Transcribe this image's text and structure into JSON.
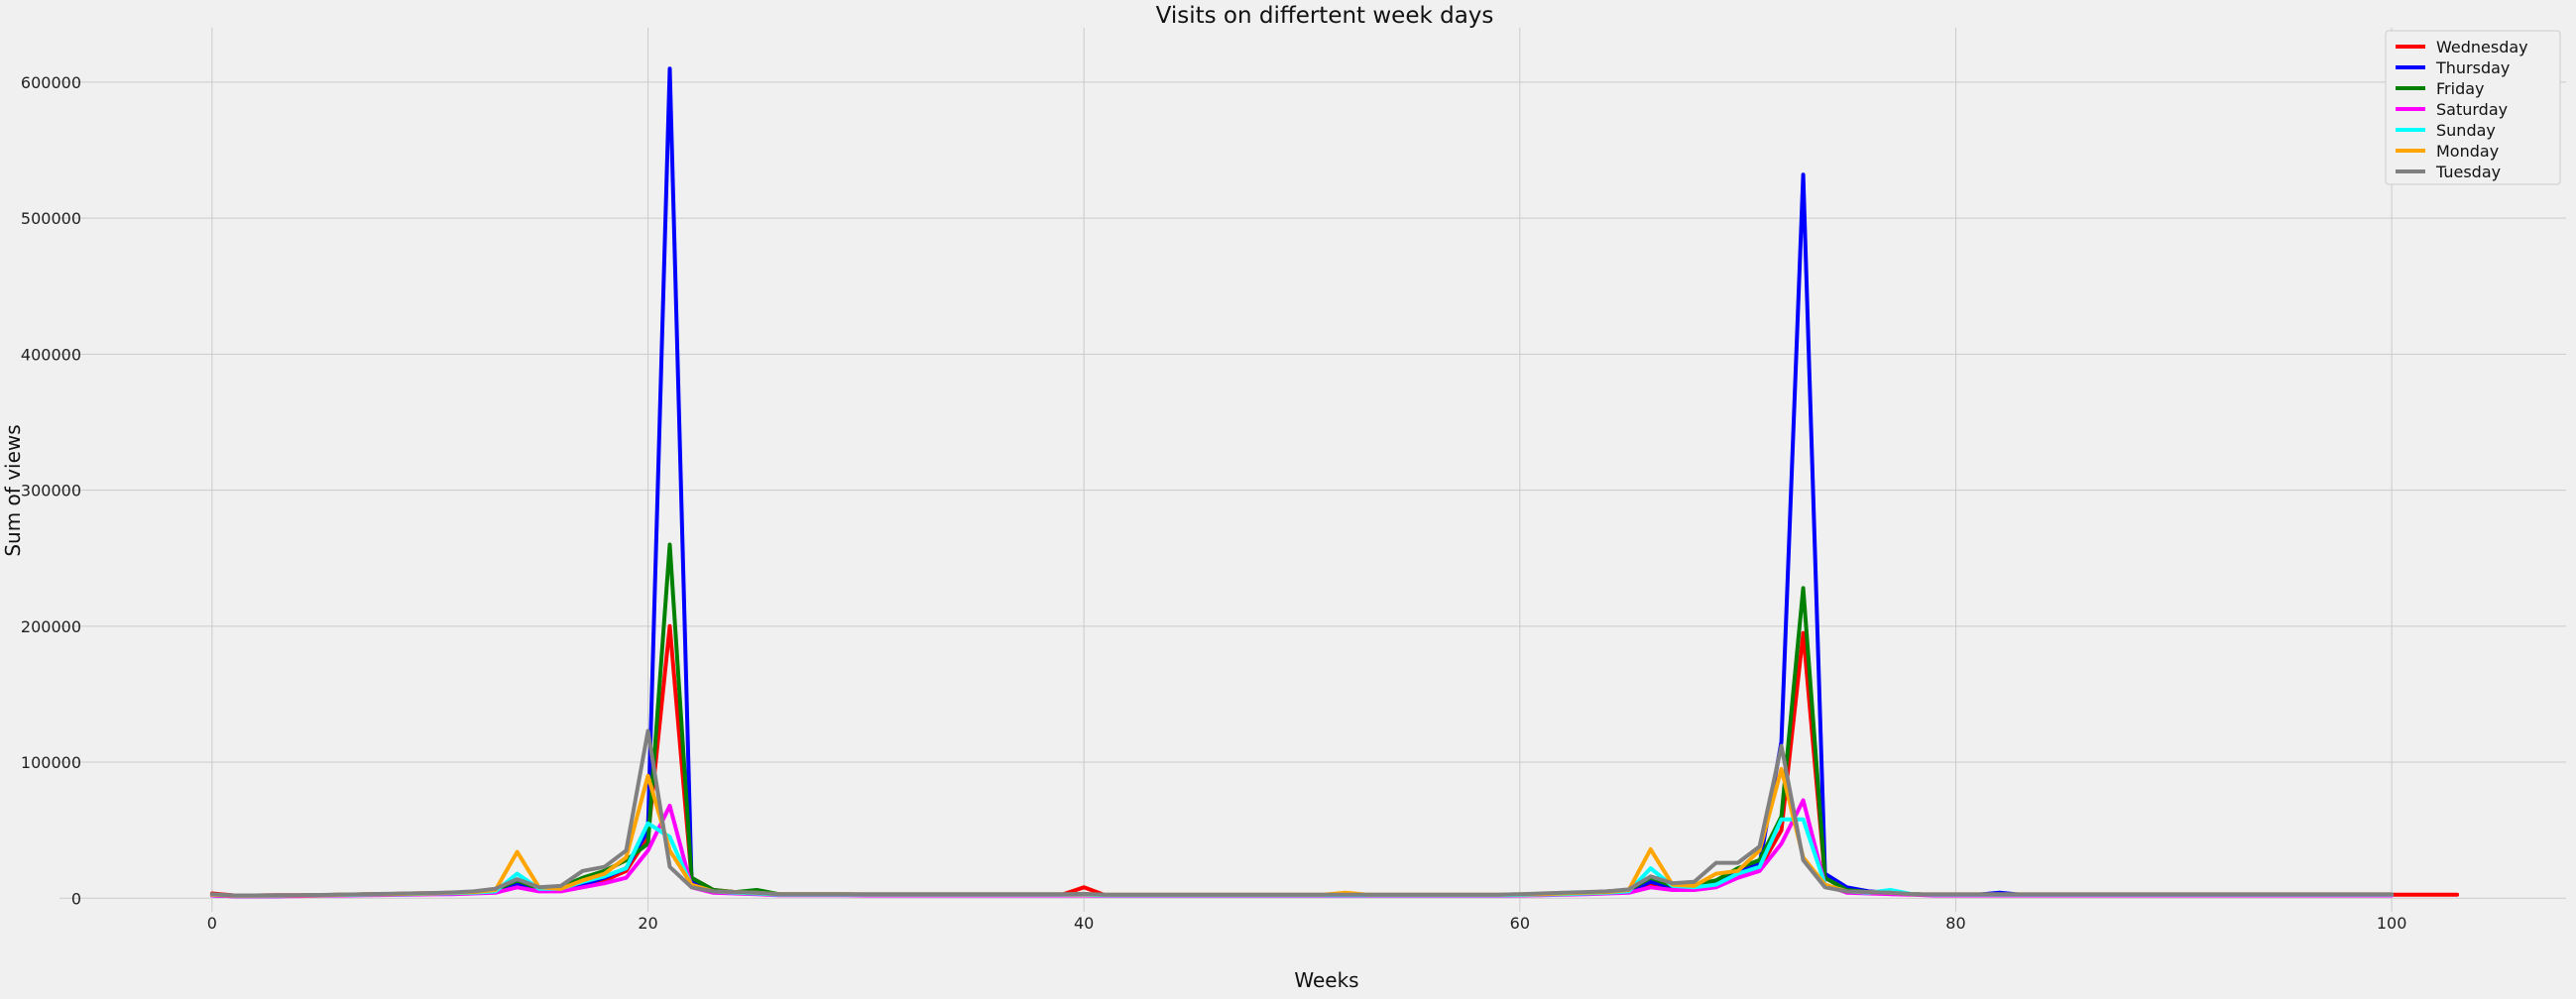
{
  "chart_data": {
    "type": "line",
    "title": "Visits on differtent week days",
    "xlabel": "Weeks",
    "ylabel": "Sum of views",
    "xlim": [
      -7,
      108
    ],
    "ylim": [
      -10000,
      640000
    ],
    "xticks": [
      0,
      20,
      40,
      60,
      80,
      100
    ],
    "xtick_labels": [
      "0",
      "20",
      "40",
      "60",
      "80",
      "100"
    ],
    "yticks": [
      0,
      100000,
      200000,
      300000,
      400000,
      500000,
      600000
    ],
    "ytick_labels": [
      "0",
      "100000",
      "200000",
      "300000",
      "400000",
      "500000",
      "600000"
    ],
    "grid": true,
    "legend_position": "top-right",
    "series": [
      {
        "name": "Wednesday",
        "color": "#ff0000",
        "x_start": 0,
        "values": [
          3500,
          2000,
          2000,
          2200,
          2200,
          2300,
          2600,
          2800,
          3000,
          3500,
          3600,
          4000,
          4500,
          5500,
          10000,
          7000,
          7000,
          10000,
          13000,
          20000,
          45000,
          200000,
          15000,
          6000,
          4500,
          4200,
          3000,
          2800,
          2800,
          2800,
          2700,
          2700,
          2700,
          2700,
          2700,
          2700,
          2700,
          2700,
          2700,
          2700,
          8000,
          2000,
          2000,
          2000,
          2000,
          2000,
          2000,
          2000,
          2000,
          2000,
          2000,
          2000,
          2000,
          2000,
          2000,
          2000,
          2000,
          2000,
          2000,
          2000,
          2500,
          3000,
          3500,
          4000,
          4500,
          5000,
          10000,
          8000,
          8000,
          10000,
          18000,
          22000,
          50000,
          195000,
          15000,
          6000,
          4500,
          4000,
          3000,
          2500,
          2500,
          2500,
          2500,
          2500,
          2500,
          2500,
          2500,
          2500,
          2500,
          2500,
          2500,
          2500,
          2500,
          2500,
          2500,
          2500,
          2500,
          2500,
          2500,
          2500,
          2500,
          2500,
          2500,
          2500
        ]
      },
      {
        "name": "Thursday",
        "color": "#0000ff",
        "x_start": 0,
        "values": [
          2000,
          1500,
          1500,
          1500,
          1800,
          2000,
          2200,
          2500,
          2800,
          3000,
          3200,
          3500,
          4000,
          5000,
          10000,
          6000,
          6000,
          10000,
          15000,
          22000,
          50000,
          610000,
          12000,
          5000,
          4000,
          3500,
          2500,
          2500,
          2500,
          2500,
          2300,
          2300,
          2300,
          2300,
          2300,
          2300,
          2300,
          2300,
          2300,
          2300,
          3000,
          2000,
          2000,
          2000,
          2000,
          2000,
          2000,
          2000,
          2000,
          2000,
          2000,
          2000,
          2000,
          2000,
          2000,
          2000,
          2000,
          2000,
          2000,
          2000,
          2200,
          2500,
          3000,
          3500,
          4000,
          5000,
          12000,
          8000,
          8000,
          12000,
          20000,
          25000,
          115000,
          532000,
          18000,
          8000,
          5000,
          4000,
          3000,
          2500,
          2500,
          2500,
          4000,
          2500,
          2500,
          2500,
          2500,
          2500,
          2500,
          2500,
          2500,
          2500,
          2500,
          2500,
          2500,
          2500,
          2500,
          2500,
          2500,
          2500,
          2500
        ]
      },
      {
        "name": "Friday",
        "color": "#008000",
        "x_start": 0,
        "values": [
          2500,
          1800,
          1800,
          2000,
          2000,
          2200,
          2500,
          2800,
          3000,
          3200,
          3500,
          4000,
          4500,
          6000,
          13000,
          7000,
          8000,
          15000,
          20000,
          28000,
          40000,
          260000,
          15000,
          6000,
          4500,
          6000,
          3000,
          2800,
          2800,
          2800,
          2700,
          2700,
          2700,
          2700,
          2700,
          2700,
          2700,
          2700,
          2700,
          2700,
          3000,
          2200,
          2200,
          2200,
          2200,
          2200,
          2200,
          2200,
          2200,
          2200,
          2200,
          2200,
          2200,
          2200,
          2200,
          2200,
          2200,
          2200,
          2200,
          2200,
          2500,
          3000,
          3500,
          4000,
          5000,
          6000,
          15000,
          9000,
          10000,
          13000,
          22000,
          28000,
          60000,
          228000,
          15000,
          6000,
          4500,
          4000,
          3000,
          2500,
          2500,
          2500,
          2500,
          2500,
          2500,
          2500,
          2500,
          2500,
          2500,
          2500,
          2500,
          2500,
          2500,
          2500,
          2500,
          2500,
          2500,
          2500,
          2500,
          2500,
          2500
        ]
      },
      {
        "name": "Saturday",
        "color": "#ff00ff",
        "x_start": 0,
        "values": [
          2000,
          1500,
          1500,
          1500,
          1600,
          1800,
          2000,
          2200,
          2400,
          2600,
          2800,
          3000,
          3500,
          4000,
          8000,
          5000,
          5000,
          8000,
          11000,
          15000,
          35000,
          68000,
          8000,
          4000,
          3500,
          3000,
          2200,
          2200,
          2200,
          2200,
          2000,
          2000,
          2000,
          2000,
          2000,
          2000,
          2000,
          2000,
          2000,
          2000,
          2000,
          1800,
          1800,
          1800,
          1800,
          1800,
          1800,
          1800,
          1800,
          1800,
          1800,
          1800,
          1800,
          1800,
          1800,
          1800,
          1800,
          1800,
          1800,
          1800,
          2000,
          2200,
          2500,
          3000,
          3500,
          4000,
          8000,
          6000,
          6000,
          8000,
          15000,
          20000,
          40000,
          72000,
          10000,
          4000,
          3500,
          3000,
          2500,
          2000,
          2000,
          2000,
          2000,
          2000,
          2000,
          2000,
          2000,
          2000,
          2000,
          2000,
          2000,
          2000,
          2000,
          2000,
          2000,
          2000,
          2000,
          2000,
          2000,
          2000,
          2000
        ]
      },
      {
        "name": "Sunday",
        "color": "#00ffff",
        "x_start": 0,
        "values": [
          2500,
          1800,
          1800,
          1800,
          2000,
          2200,
          2400,
          2600,
          2800,
          3000,
          3300,
          3600,
          4000,
          5000,
          18000,
          7000,
          7000,
          12000,
          16000,
          22000,
          55000,
          45000,
          9000,
          5000,
          4000,
          3500,
          2600,
          2600,
          2600,
          2600,
          2500,
          2500,
          2500,
          2500,
          2500,
          2500,
          2500,
          2500,
          2500,
          2500,
          2500,
          2200,
          2200,
          2200,
          2200,
          2200,
          2200,
          2200,
          2200,
          2200,
          2200,
          2200,
          2200,
          2200,
          2200,
          2200,
          2200,
          2200,
          2200,
          2200,
          2400,
          2700,
          3000,
          3500,
          4000,
          5000,
          22000,
          9000,
          8000,
          10000,
          18000,
          23000,
          58000,
          58000,
          10000,
          5000,
          4000,
          6000,
          3000,
          2500,
          2500,
          2500,
          2500,
          2500,
          2500,
          2500,
          2500,
          2500,
          2500,
          2500,
          2500,
          2500,
          2500,
          2500,
          2500,
          2500,
          2500,
          2500,
          2500,
          2500,
          2500
        ]
      },
      {
        "name": "Monday",
        "color": "#ffa500",
        "x_start": 0,
        "values": [
          2500,
          1800,
          1800,
          2000,
          2000,
          2200,
          2500,
          2800,
          3000,
          3200,
          3500,
          4000,
          4500,
          6000,
          34000,
          8000,
          7000,
          13000,
          18000,
          30000,
          90000,
          35000,
          10000,
          5000,
          4500,
          4000,
          3000,
          3000,
          3000,
          3000,
          2800,
          2800,
          2800,
          2800,
          2800,
          2800,
          2800,
          2800,
          2800,
          2800,
          3000,
          2500,
          2500,
          2500,
          2500,
          2500,
          2500,
          2500,
          2500,
          2500,
          2500,
          2500,
          4000,
          2500,
          2500,
          2500,
          2500,
          2500,
          2500,
          2500,
          2800,
          3000,
          3500,
          4000,
          4500,
          6000,
          36000,
          10000,
          9000,
          18000,
          20000,
          35000,
          95000,
          30000,
          10000,
          5000,
          4500,
          4000,
          3000,
          2800,
          2800,
          2800,
          2800,
          2800,
          2800,
          2800,
          2800,
          2800,
          2800,
          2800,
          2800,
          2800,
          2800,
          2800,
          2800,
          2800,
          2800,
          2800,
          2800,
          2800,
          2800
        ]
      },
      {
        "name": "Tuesday",
        "color": "#808080",
        "x_start": 0,
        "values": [
          3000,
          2000,
          2000,
          2200,
          2200,
          2400,
          2700,
          3000,
          3200,
          3500,
          3800,
          4200,
          5000,
          7000,
          14000,
          8000,
          9000,
          20000,
          23000,
          35000,
          123000,
          23000,
          8000,
          5000,
          4500,
          4000,
          3000,
          3000,
          3000,
          3000,
          2900,
          2900,
          2900,
          2900,
          2900,
          2900,
          2900,
          2900,
          2900,
          2900,
          3200,
          2600,
          2600,
          2600,
          2600,
          2600,
          2600,
          2600,
          2600,
          2600,
          2600,
          2600,
          2600,
          2600,
          2600,
          2600,
          2600,
          2600,
          2600,
          2600,
          3000,
          3500,
          4000,
          4500,
          5000,
          6500,
          16000,
          11000,
          12000,
          26000,
          26000,
          38000,
          112000,
          28000,
          8000,
          5000,
          4500,
          4000,
          3000,
          2800,
          2800,
          2800,
          2800,
          2800,
          2800,
          2800,
          2800,
          2800,
          2800,
          2800,
          2800,
          2800,
          2800,
          2800,
          2800,
          2800,
          2800,
          2800,
          2800,
          2800,
          2800
        ]
      }
    ]
  }
}
